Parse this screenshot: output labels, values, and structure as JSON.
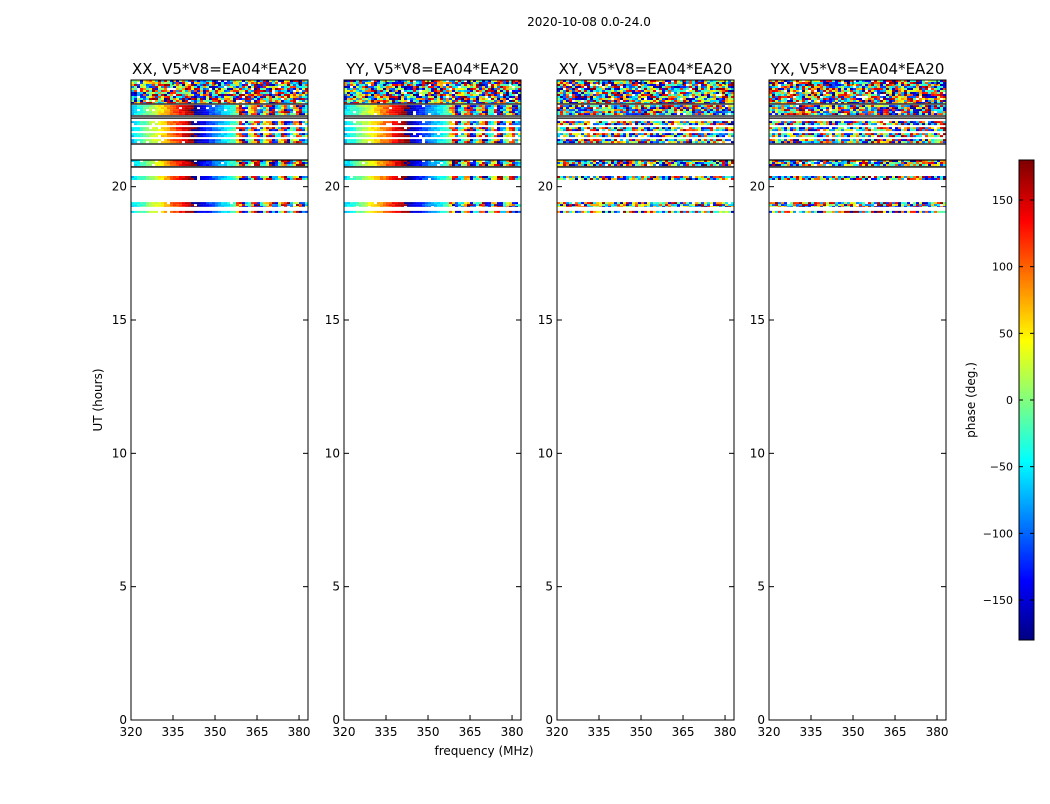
{
  "chart_data": {
    "type": "heatmap",
    "suptitle": "2020-10-08 0.0-24.0",
    "xlabel": "frequency (MHz)",
    "ylabel": "UT (hours)",
    "xlim": [
      320,
      383.2
    ],
    "ylim": [
      0,
      24
    ],
    "xticks": [
      "320",
      "335",
      "350",
      "365",
      "380"
    ],
    "yticks": [
      "0",
      "5",
      "10",
      "15",
      "20"
    ],
    "panels": [
      {
        "title": "XX, V5*V8=EA04*EA20",
        "coherent": true
      },
      {
        "title": "YY, V5*V8=EA04*EA20",
        "coherent": true
      },
      {
        "title": "XY, V5*V8=EA04*EA20",
        "coherent": false
      },
      {
        "title": "YX, V5*V8=EA04*EA20",
        "coherent": false
      }
    ],
    "bands_ut": [
      {
        "start": 23.13,
        "end": 24.0,
        "kind": "noisy"
      },
      {
        "start": 22.69,
        "end": 23.06,
        "kind": "mixed"
      },
      {
        "start": 21.63,
        "end": 22.46,
        "kind": "striped"
      },
      {
        "start": 20.77,
        "end": 21.0,
        "kind": "mixed"
      },
      {
        "start": 20.25,
        "end": 20.4,
        "kind": "mixed"
      },
      {
        "start": 19.24,
        "end": 19.42,
        "kind": "mixed"
      },
      {
        "start": 19.01,
        "end": 19.09,
        "kind": "mixed"
      }
    ],
    "flag_lines_ut": [
      23.1,
      22.65,
      22.57,
      21.6,
      21.0,
      20.74
    ],
    "phase_model": {
      "phase_at_320MHz_deg": -60,
      "slope_deg_per_MHz": 11,
      "coherent_until_MHz": 357
    },
    "colorbar": {
      "label": "phase (deg.)",
      "range": [
        -180,
        180
      ],
      "ticks": [
        "150",
        "100",
        "50",
        "0",
        "−50",
        "−100",
        "−150"
      ],
      "tick_values": [
        150,
        100,
        50,
        0,
        -50,
        -100,
        -150
      ],
      "colormap": "jet"
    }
  }
}
